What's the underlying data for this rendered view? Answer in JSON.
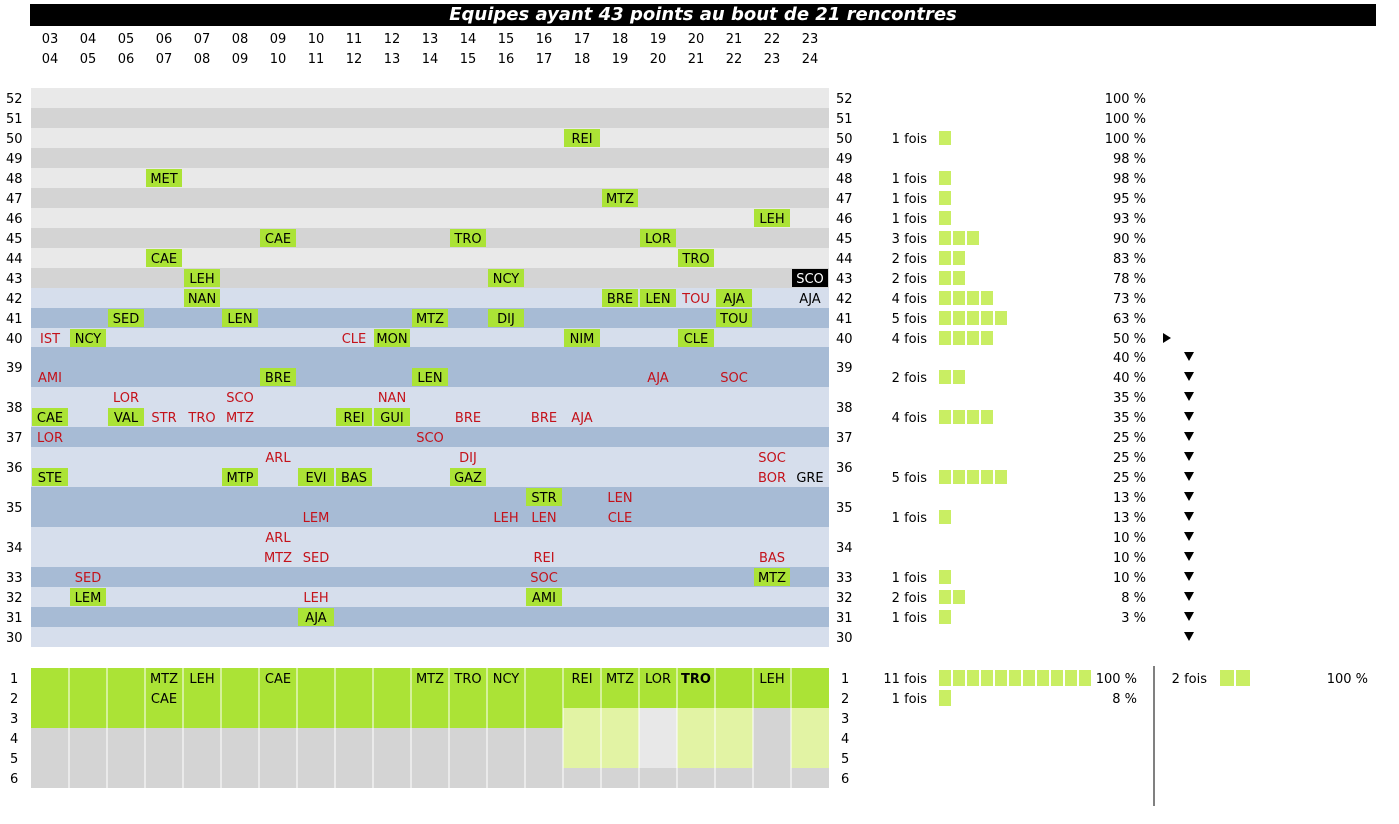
{
  "title": "Equipes ayant 43 points au bout de 21 rencontres",
  "colors": {
    "band_light_grey": "#e9e9e9",
    "band_grey": "#d4d4d4",
    "band_light_blue": "#d6deec",
    "band_blue": "#a7bbd5",
    "green": "#abe336",
    "pale_green": "#e2f3a4",
    "pale_grey": "#e8e8e8",
    "red_text": "#c4111a",
    "bar_green": "#c9ee63",
    "highlight": "#000000"
  },
  "chart_data": {
    "type": "table",
    "seasons_top": [
      "03",
      "04",
      "05",
      "06",
      "07",
      "08",
      "09",
      "10",
      "11",
      "12",
      "13",
      "14",
      "15",
      "16",
      "17",
      "18",
      "19",
      "20",
      "21",
      "22",
      "23"
    ],
    "seasons_bottom": [
      "04",
      "05",
      "06",
      "07",
      "08",
      "09",
      "10",
      "11",
      "12",
      "13",
      "14",
      "15",
      "16",
      "17",
      "18",
      "19",
      "20",
      "21",
      "22",
      "23",
      "24"
    ],
    "rows": [
      {
        "label": "52",
        "count": "",
        "n": 0,
        "pct": "100 %",
        "arrow": ""
      },
      {
        "label": "51",
        "count": "",
        "n": 0,
        "pct": "100 %",
        "arrow": ""
      },
      {
        "label": "50",
        "count": "1 fois",
        "n": 1,
        "pct": "100 %",
        "arrow": ""
      },
      {
        "label": "49",
        "count": "",
        "n": 0,
        "pct": "98 %",
        "arrow": ""
      },
      {
        "label": "48",
        "count": "1 fois",
        "n": 1,
        "pct": "98 %",
        "arrow": ""
      },
      {
        "label": "47",
        "count": "1 fois",
        "n": 1,
        "pct": "95 %",
        "arrow": ""
      },
      {
        "label": "46",
        "count": "1 fois",
        "n": 1,
        "pct": "93 %",
        "arrow": ""
      },
      {
        "label": "45",
        "count": "3 fois",
        "n": 3,
        "pct": "90 %",
        "arrow": ""
      },
      {
        "label": "44",
        "count": "2 fois",
        "n": 2,
        "pct": "83 %",
        "arrow": ""
      },
      {
        "label": "43",
        "count": "2 fois",
        "n": 2,
        "pct": "78 %",
        "arrow": ""
      },
      {
        "label": "42",
        "count": "4 fois",
        "n": 4,
        "pct": "73 %",
        "arrow": ""
      },
      {
        "label": "41",
        "count": "5 fois",
        "n": 5,
        "pct": "63 %",
        "arrow": ""
      },
      {
        "label": "40",
        "count": "4 fois",
        "n": 4,
        "pct": "50 %",
        "arrow": "▶"
      },
      {
        "label": "",
        "count": "",
        "n": 0,
        "pct": "40 %",
        "arrow": "▼"
      },
      {
        "label": "39",
        "count": "2 fois",
        "n": 2,
        "pct": "40 %",
        "arrow": "▼"
      },
      {
        "label": "",
        "count": "",
        "n": 0,
        "pct": "35 %",
        "arrow": "▼"
      },
      {
        "label": "38",
        "count": "4 fois",
        "n": 4,
        "pct": "35 %",
        "arrow": "▼"
      },
      {
        "label": "37",
        "count": "",
        "n": 0,
        "pct": "25 %",
        "arrow": "▼"
      },
      {
        "label": "",
        "count": "",
        "n": 0,
        "pct": "25 %",
        "arrow": "▼"
      },
      {
        "label": "36",
        "count": "5 fois",
        "n": 5,
        "pct": "25 %",
        "arrow": "▼"
      },
      {
        "label": "",
        "count": "",
        "n": 0,
        "pct": "13 %",
        "arrow": "▼"
      },
      {
        "label": "35",
        "count": "1 fois",
        "n": 1,
        "pct": "13 %",
        "arrow": "▼"
      },
      {
        "label": "",
        "count": "",
        "n": 0,
        "pct": "10 %",
        "arrow": "▼"
      },
      {
        "label": "34",
        "count": "",
        "n": 0,
        "pct": "10 %",
        "arrow": "▼"
      },
      {
        "label": "33",
        "count": "1 fois",
        "n": 1,
        "pct": "10 %",
        "arrow": "▼"
      },
      {
        "label": "32",
        "count": "2 fois",
        "n": 2,
        "pct": "8 %",
        "arrow": "▼"
      },
      {
        "label": "31",
        "count": "1 fois",
        "n": 1,
        "pct": "3 %",
        "arrow": "▼"
      },
      {
        "label": "30",
        "count": "",
        "n": 0,
        "pct": "",
        "arrow": "▼"
      }
    ],
    "cells": [
      {
        "points": 50,
        "season": "17-18",
        "team": "REI",
        "style": "green",
        "row": 2,
        "col": 14
      },
      {
        "points": 48,
        "season": "06-07",
        "team": "MET",
        "style": "green",
        "row": 4,
        "col": 3
      },
      {
        "points": 47,
        "season": "18-19",
        "team": "MTZ",
        "style": "green",
        "row": 5,
        "col": 15
      },
      {
        "points": 46,
        "season": "22-23",
        "team": "LEH",
        "style": "green",
        "row": 6,
        "col": 19
      },
      {
        "points": 45,
        "season": "09-10",
        "team": "CAE",
        "style": "green",
        "row": 7,
        "col": 6
      },
      {
        "points": 45,
        "season": "14-15",
        "team": "TRO",
        "style": "green",
        "row": 7,
        "col": 11
      },
      {
        "points": 45,
        "season": "19-20",
        "team": "LOR",
        "style": "green",
        "row": 7,
        "col": 16
      },
      {
        "points": 44,
        "season": "06-07",
        "team": "CAE",
        "style": "green",
        "row": 8,
        "col": 3
      },
      {
        "points": 44,
        "season": "20-21",
        "team": "TRO",
        "style": "green",
        "row": 8,
        "col": 17
      },
      {
        "points": 43,
        "season": "07-08",
        "team": "LEH",
        "style": "green",
        "row": 9,
        "col": 4
      },
      {
        "points": 43,
        "season": "15-16",
        "team": "NCY",
        "style": "green",
        "row": 9,
        "col": 12
      },
      {
        "points": 43,
        "season": "23-24",
        "team": "SCO",
        "style": "highlight",
        "row": 9,
        "col": 20
      },
      {
        "points": 42,
        "season": "07-08",
        "team": "NAN",
        "style": "green",
        "row": 10,
        "col": 4
      },
      {
        "points": 42,
        "season": "18-19",
        "team": "BRE",
        "style": "green",
        "row": 10,
        "col": 15
      },
      {
        "points": 42,
        "season": "19-20",
        "team": "LEN",
        "style": "green",
        "row": 10,
        "col": 16
      },
      {
        "points": 42,
        "season": "20-21",
        "team": "TOU",
        "style": "red",
        "row": 10,
        "col": 17
      },
      {
        "points": 42,
        "season": "21-22",
        "team": "AJA",
        "style": "green",
        "row": 10,
        "col": 18
      },
      {
        "points": 42,
        "season": "23-24",
        "team": "AJA",
        "style": "plain",
        "row": 10,
        "col": 20
      },
      {
        "points": 41,
        "season": "05-06",
        "team": "SED",
        "style": "green",
        "row": 11,
        "col": 2
      },
      {
        "points": 41,
        "season": "08-09",
        "team": "LEN",
        "style": "green",
        "row": 11,
        "col": 5
      },
      {
        "points": 41,
        "season": "13-14",
        "team": "MTZ",
        "style": "green",
        "row": 11,
        "col": 10
      },
      {
        "points": 41,
        "season": "15-16",
        "team": "DIJ",
        "style": "green",
        "row": 11,
        "col": 12
      },
      {
        "points": 41,
        "season": "21-22",
        "team": "TOU",
        "style": "green",
        "row": 11,
        "col": 18
      },
      {
        "points": 40,
        "season": "03-04",
        "team": "IST",
        "style": "red",
        "row": 12,
        "col": 0
      },
      {
        "points": 40,
        "season": "04-05",
        "team": "NCY",
        "style": "green",
        "row": 12,
        "col": 1
      },
      {
        "points": 40,
        "season": "11-12",
        "team": "CLE",
        "style": "red",
        "row": 12,
        "col": 8
      },
      {
        "points": 40,
        "season": "12-13",
        "team": "MON",
        "style": "green",
        "row": 12,
        "col": 9
      },
      {
        "points": 40,
        "season": "17-18",
        "team": "NIM",
        "style": "green",
        "row": 12,
        "col": 14
      },
      {
        "points": 40,
        "season": "20-21",
        "team": "CLE",
        "style": "green",
        "row": 12,
        "col": 17
      },
      {
        "points": 39,
        "season": "03-04",
        "team": "AMI",
        "style": "red",
        "row": 14,
        "col": 0
      },
      {
        "points": 39,
        "season": "09-10",
        "team": "BRE",
        "style": "green",
        "row": 14,
        "col": 6
      },
      {
        "points": 39,
        "season": "13-14",
        "team": "LEN",
        "style": "green",
        "row": 14,
        "col": 10
      },
      {
        "points": 39,
        "season": "19-20",
        "team": "AJA",
        "style": "red",
        "row": 14,
        "col": 16
      },
      {
        "points": 39,
        "season": "21-22",
        "team": "SOC",
        "style": "red",
        "row": 14,
        "col": 18
      },
      {
        "points": 38,
        "season": "05-06",
        "team": "LOR",
        "style": "red",
        "row": 15,
        "col": 2
      },
      {
        "points": 38,
        "season": "08-09",
        "team": "SCO",
        "style": "red",
        "row": 15,
        "col": 5
      },
      {
        "points": 38,
        "season": "12-13",
        "team": "NAN",
        "style": "red",
        "row": 15,
        "col": 9
      },
      {
        "points": 38,
        "season": "03-04",
        "team": "CAE",
        "style": "green",
        "row": 16,
        "col": 0
      },
      {
        "points": 38,
        "season": "05-06",
        "team": "VAL",
        "style": "green",
        "row": 16,
        "col": 2
      },
      {
        "points": 38,
        "season": "06-07",
        "team": "STR",
        "style": "red",
        "row": 16,
        "col": 3
      },
      {
        "points": 38,
        "season": "07-08",
        "team": "TRO",
        "style": "red",
        "row": 16,
        "col": 4
      },
      {
        "points": 38,
        "season": "08-09",
        "team": "MTZ",
        "style": "red",
        "row": 16,
        "col": 5
      },
      {
        "points": 38,
        "season": "11-12",
        "team": "REI",
        "style": "green",
        "row": 16,
        "col": 8
      },
      {
        "points": 38,
        "season": "12-13",
        "team": "GUI",
        "style": "green",
        "row": 16,
        "col": 9
      },
      {
        "points": 38,
        "season": "14-15",
        "team": "BRE",
        "style": "red",
        "row": 16,
        "col": 11
      },
      {
        "points": 38,
        "season": "16-17",
        "team": "BRE",
        "style": "red",
        "row": 16,
        "col": 13
      },
      {
        "points": 38,
        "season": "17-18",
        "team": "AJA",
        "style": "red",
        "row": 16,
        "col": 14
      },
      {
        "points": 37,
        "season": "03-04",
        "team": "LOR",
        "style": "red",
        "row": 17,
        "col": 0
      },
      {
        "points": 37,
        "season": "13-14",
        "team": "SCO",
        "style": "red",
        "row": 17,
        "col": 10
      },
      {
        "points": 36,
        "season": "09-10",
        "team": "ARL",
        "style": "red",
        "row": 18,
        "col": 6
      },
      {
        "points": 36,
        "season": "14-15",
        "team": "DIJ",
        "style": "red",
        "row": 18,
        "col": 11
      },
      {
        "points": 36,
        "season": "22-23",
        "team": "SOC",
        "style": "red",
        "row": 18,
        "col": 19
      },
      {
        "points": 36,
        "season": "03-04",
        "team": "STE",
        "style": "green",
        "row": 19,
        "col": 0
      },
      {
        "points": 36,
        "season": "08-09",
        "team": "MTP",
        "style": "green",
        "row": 19,
        "col": 5
      },
      {
        "points": 36,
        "season": "10-11",
        "team": "EVI",
        "style": "green",
        "row": 19,
        "col": 7
      },
      {
        "points": 36,
        "season": "11-12",
        "team": "BAS",
        "style": "green",
        "row": 19,
        "col": 8
      },
      {
        "points": 36,
        "season": "14-15",
        "team": "GAZ",
        "style": "green",
        "row": 19,
        "col": 11
      },
      {
        "points": 36,
        "season": "22-23",
        "team": "BOR",
        "style": "red",
        "row": 19,
        "col": 19
      },
      {
        "points": 36,
        "season": "23-24",
        "team": "GRE",
        "style": "plain",
        "row": 19,
        "col": 20
      },
      {
        "points": 35,
        "season": "16-17",
        "team": "STR",
        "style": "green",
        "row": 20,
        "col": 13
      },
      {
        "points": 35,
        "season": "18-19",
        "team": "LEN",
        "style": "red",
        "row": 20,
        "col": 15
      },
      {
        "points": 35,
        "season": "10-11",
        "team": "LEM",
        "style": "red",
        "row": 21,
        "col": 7
      },
      {
        "points": 35,
        "season": "15-16",
        "team": "LEH",
        "style": "red",
        "row": 21,
        "col": 12
      },
      {
        "points": 35,
        "season": "16-17",
        "team": "LEN",
        "style": "red",
        "row": 21,
        "col": 13
      },
      {
        "points": 35,
        "season": "18-19",
        "team": "CLE",
        "style": "red",
        "row": 21,
        "col": 15
      },
      {
        "points": 34,
        "season": "09-10",
        "team": "ARL",
        "style": "red",
        "row": 22,
        "col": 6
      },
      {
        "points": 34,
        "season": "09-10",
        "team": "MTZ",
        "style": "red",
        "row": 23,
        "col": 6
      },
      {
        "points": 34,
        "season": "10-11",
        "team": "SED",
        "style": "red",
        "row": 23,
        "col": 7
      },
      {
        "points": 34,
        "season": "16-17",
        "team": "REI",
        "style": "red",
        "row": 23,
        "col": 13
      },
      {
        "points": 34,
        "season": "22-23",
        "team": "BAS",
        "style": "red",
        "row": 23,
        "col": 19
      },
      {
        "points": 33,
        "season": "04-05",
        "team": "SED",
        "style": "red",
        "row": 24,
        "col": 1
      },
      {
        "points": 33,
        "season": "16-17",
        "team": "SOC",
        "style": "red",
        "row": 24,
        "col": 13
      },
      {
        "points": 33,
        "season": "22-23",
        "team": "MTZ",
        "style": "green",
        "row": 24,
        "col": 19
      },
      {
        "points": 32,
        "season": "04-05",
        "team": "LEM",
        "style": "green",
        "row": 25,
        "col": 1
      },
      {
        "points": 32,
        "season": "10-11",
        "team": "LEH",
        "style": "red",
        "row": 25,
        "col": 7
      },
      {
        "points": 32,
        "season": "16-17",
        "team": "AMI",
        "style": "green",
        "row": 25,
        "col": 13
      },
      {
        "points": 31,
        "season": "10-11",
        "team": "AJA",
        "style": "green",
        "row": 26,
        "col": 7
      }
    ],
    "ranking": {
      "rank_labels": [
        "1",
        "2",
        "3",
        "4",
        "5",
        "6"
      ],
      "teams": [
        {
          "rank": "1",
          "season": "06-07",
          "team": "MTZ",
          "col": 3,
          "bold": false
        },
        {
          "rank": "2",
          "season": "06-07",
          "team": "CAE",
          "col": 3,
          "bold": false
        },
        {
          "rank": "1",
          "season": "07-08",
          "team": "LEH",
          "col": 4,
          "bold": false
        },
        {
          "rank": "1",
          "season": "09-10",
          "team": "CAE",
          "col": 6,
          "bold": false
        },
        {
          "rank": "1",
          "season": "13-14",
          "team": "MTZ",
          "col": 10,
          "bold": false
        },
        {
          "rank": "1",
          "season": "14-15",
          "team": "TRO",
          "col": 11,
          "bold": false
        },
        {
          "rank": "1",
          "season": "15-16",
          "team": "NCY",
          "col": 12,
          "bold": false
        },
        {
          "rank": "1",
          "season": "17-18",
          "team": "REI",
          "col": 14,
          "bold": false
        },
        {
          "rank": "1",
          "season": "18-19",
          "team": "MTZ",
          "col": 15,
          "bold": false
        },
        {
          "rank": "1",
          "season": "19-20",
          "team": "LOR",
          "col": 16,
          "bold": false
        },
        {
          "rank": "1",
          "season": "20-21",
          "team": "TRO",
          "col": 17,
          "bold": true
        },
        {
          "rank": "1",
          "season": "22-23",
          "team": "LEH",
          "col": 19,
          "bold": false
        }
      ],
      "summary": [
        {
          "rank": "1",
          "count": "11 fois",
          "n": 11,
          "pct": "100 %"
        },
        {
          "rank": "2",
          "count": "1 fois",
          "n": 1,
          "pct": "8 %"
        }
      ],
      "side_summary": {
        "count": "2 fois",
        "n": 2,
        "pct": "100 %"
      }
    }
  }
}
